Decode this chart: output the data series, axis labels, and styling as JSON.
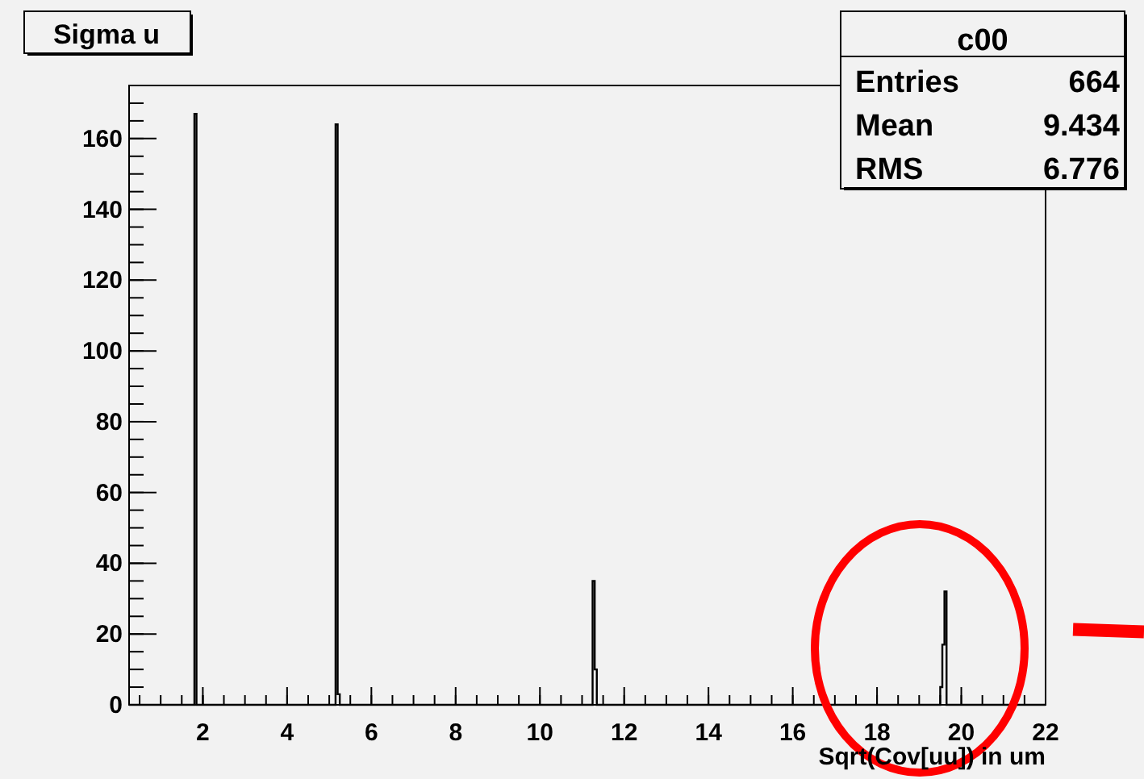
{
  "chart_data": {
    "type": "histogram",
    "title": "Sigma u",
    "xlabel": "Sqrt(Cov[uu]) in um",
    "bins": [
      0.25,
      1.8,
      1.85,
      5.15,
      5.2,
      5.25,
      11.25,
      11.3,
      11.35,
      19.5,
      19.55,
      19.6,
      19.65,
      22
    ],
    "values": [
      0,
      167,
      0,
      164,
      3,
      0,
      35,
      10,
      0,
      5,
      17,
      32,
      0
    ],
    "color": "#000000",
    "xlim": [
      0.25,
      22
    ],
    "xticks": [
      2,
      4,
      6,
      8,
      10,
      12,
      14,
      16,
      18,
      20,
      22
    ],
    "ylim": [
      0,
      175
    ],
    "yticks": [
      0,
      20,
      40,
      60,
      80,
      100,
      120,
      140,
      160
    ],
    "annotations": [
      "c00",
      "Entries 664",
      "Mean 9.434",
      "RMS 6.776"
    ]
  }
}
